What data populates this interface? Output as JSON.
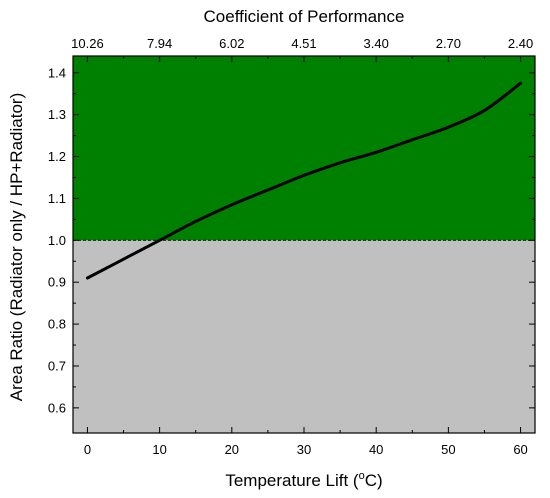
{
  "chart_data": {
    "type": "line",
    "xlabel": "Temperature Lift (",
    "xlabel_sup": "o",
    "xlabel_unit": "C)",
    "ylabel": "Area Ratio (Radiator only / HP+Radiator)",
    "top_axis_label": "Coefficient of Performance",
    "xlim": [
      -2,
      62
    ],
    "ylim": [
      0.54,
      1.44
    ],
    "x_ticks": [
      0,
      10,
      20,
      30,
      40,
      50,
      60
    ],
    "x_tick_labels": [
      "0",
      "10",
      "20",
      "30",
      "40",
      "50",
      "60"
    ],
    "y_ticks": [
      0.6,
      0.7,
      0.8,
      0.9,
      1.0,
      1.1,
      1.2,
      1.3,
      1.4
    ],
    "y_tick_labels": [
      "0.6",
      "0.7",
      "0.8",
      "0.9",
      "1.0",
      "1.1",
      "1.2",
      "1.3",
      "1.4"
    ],
    "top_ticks_x": [
      0,
      10,
      20,
      30,
      40,
      50,
      60
    ],
    "top_tick_labels": [
      "10.26",
      "7.94",
      "6.02",
      "4.51",
      "3.40",
      "2.70",
      "2.40"
    ],
    "threshold": 1.0,
    "regions": {
      "above_color": "#008000",
      "below_color": "#c0c0c0"
    },
    "series": [
      {
        "color": "#000000",
        "x": [
          0,
          5,
          10,
          15,
          20,
          25,
          30,
          35,
          40,
          45,
          50,
          55,
          60
        ],
        "y": [
          0.91,
          0.955,
          1.0,
          1.045,
          1.085,
          1.12,
          1.155,
          1.185,
          1.21,
          1.24,
          1.27,
          1.31,
          1.375
        ]
      }
    ],
    "grid": false
  }
}
